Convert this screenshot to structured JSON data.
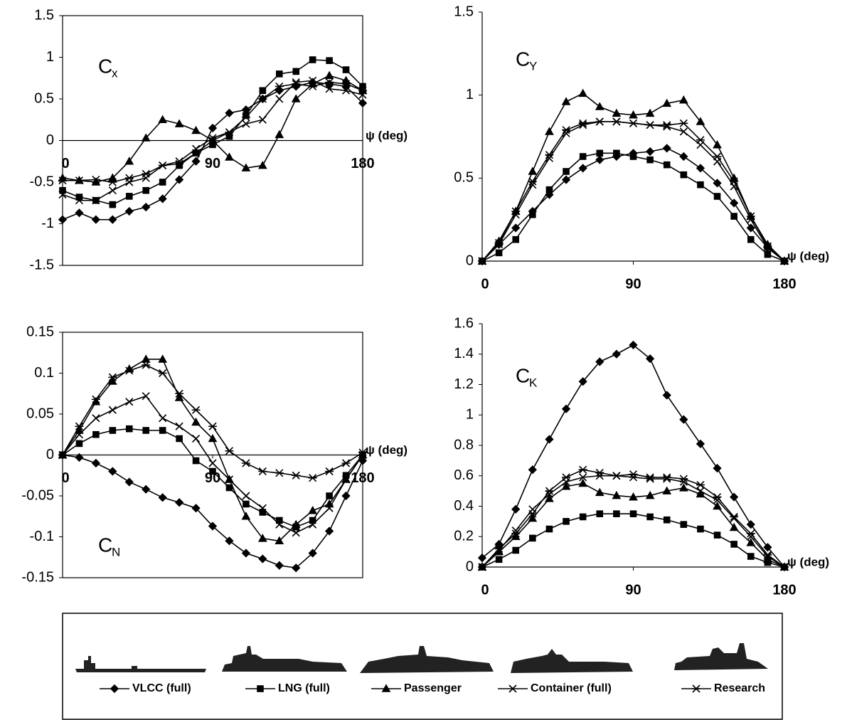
{
  "chart_data": [
    {
      "type": "line",
      "label": {
        "main": "C",
        "sub": "x"
      },
      "xlabel": "ψ (deg)",
      "frame": true,
      "x": [
        0,
        10,
        20,
        30,
        40,
        50,
        60,
        70,
        80,
        90,
        100,
        110,
        120,
        130,
        140,
        150,
        160,
        170,
        180
      ],
      "xlim": [
        0,
        180
      ],
      "xticks": [
        0,
        90,
        180
      ],
      "ylim": [
        -1.5,
        1.5
      ],
      "yticks": [
        -1.5,
        -1,
        -0.5,
        0,
        0.5,
        1,
        1.5
      ],
      "series": [
        {
          "values": [
            -0.95,
            -0.87,
            -0.95,
            -0.95,
            -0.85,
            -0.8,
            -0.7,
            -0.47,
            -0.25,
            0.15,
            0.33,
            0.37,
            0.5,
            0.6,
            0.65,
            0.7,
            0.68,
            0.65,
            0.45
          ]
        },
        {
          "values": [
            -0.6,
            -0.68,
            -0.72,
            -0.77,
            -0.67,
            -0.6,
            -0.5,
            -0.3,
            -0.15,
            -0.05,
            0.05,
            0.3,
            0.6,
            0.8,
            0.83,
            0.97,
            0.96,
            0.85,
            0.65
          ]
        },
        {
          "values": [
            -0.45,
            -0.48,
            -0.5,
            -0.45,
            -0.25,
            0.03,
            0.25,
            0.2,
            0.12,
            0.0,
            -0.2,
            -0.33,
            -0.3,
            0.07,
            0.5,
            0.68,
            0.78,
            0.72,
            0.6
          ]
        },
        {
          "values": [
            -0.65,
            -0.72,
            -0.72,
            -0.6,
            -0.5,
            -0.45,
            -0.3,
            -0.25,
            -0.1,
            0.03,
            0.1,
            0.2,
            0.25,
            0.5,
            0.7,
            0.72,
            0.62,
            0.6,
            0.55
          ]
        },
        {
          "values": [
            -0.48,
            -0.48,
            -0.47,
            -0.5,
            -0.45,
            -0.4,
            -0.3,
            -0.28,
            -0.15,
            0.0,
            0.1,
            0.28,
            0.5,
            0.65,
            0.68,
            0.65,
            0.7,
            0.68,
            0.6
          ]
        }
      ]
    },
    {
      "type": "line",
      "label": {
        "main": "C",
        "sub": "Y"
      },
      "xlabel": "ψ (deg)",
      "frame": false,
      "x": [
        0,
        10,
        20,
        30,
        40,
        50,
        60,
        70,
        80,
        90,
        100,
        110,
        120,
        130,
        140,
        150,
        160,
        170,
        180
      ],
      "xlim": [
        0,
        180
      ],
      "xticks": [
        0,
        90,
        180
      ],
      "ylim": [
        0,
        1.5
      ],
      "yticks": [
        0,
        0.5,
        1,
        1.5
      ],
      "series": [
        {
          "values": [
            0,
            0.1,
            0.2,
            0.3,
            0.4,
            0.49,
            0.56,
            0.61,
            0.63,
            0.65,
            0.66,
            0.68,
            0.63,
            0.56,
            0.47,
            0.35,
            0.2,
            0.08,
            0
          ]
        },
        {
          "values": [
            0,
            0.05,
            0.13,
            0.28,
            0.43,
            0.54,
            0.63,
            0.65,
            0.65,
            0.63,
            0.61,
            0.58,
            0.52,
            0.46,
            0.39,
            0.27,
            0.13,
            0.04,
            0
          ]
        },
        {
          "values": [
            0,
            0.12,
            0.3,
            0.54,
            0.78,
            0.96,
            1.01,
            0.93,
            0.89,
            0.88,
            0.89,
            0.95,
            0.97,
            0.84,
            0.7,
            0.5,
            0.27,
            0.1,
            0
          ]
        },
        {
          "values": [
            0,
            0.1,
            0.28,
            0.46,
            0.62,
            0.77,
            0.82,
            0.84,
            0.84,
            0.83,
            0.82,
            0.81,
            0.78,
            0.7,
            0.6,
            0.45,
            0.25,
            0.08,
            0
          ]
        },
        {
          "values": [
            0,
            0.11,
            0.3,
            0.48,
            0.64,
            0.79,
            0.83,
            0.84,
            0.84,
            0.83,
            0.82,
            0.82,
            0.83,
            0.73,
            0.63,
            0.48,
            0.27,
            0.09,
            0
          ]
        }
      ]
    },
    {
      "type": "line",
      "label": {
        "main": "C",
        "sub": "N"
      },
      "xlabel": "ψ (deg)",
      "frame": true,
      "x": [
        0,
        10,
        20,
        30,
        40,
        50,
        60,
        70,
        80,
        90,
        100,
        110,
        120,
        130,
        140,
        150,
        160,
        170,
        180
      ],
      "xlim": [
        0,
        180
      ],
      "xticks": [
        0,
        90,
        180
      ],
      "ylim": [
        -0.15,
        0.15
      ],
      "yticks": [
        -0.15,
        -0.1,
        -0.05,
        0,
        0.05,
        0.1,
        0.15
      ],
      "series": [
        {
          "values": [
            0,
            -0.003,
            -0.01,
            -0.02,
            -0.033,
            -0.042,
            -0.052,
            -0.058,
            -0.065,
            -0.087,
            -0.105,
            -0.12,
            -0.127,
            -0.135,
            -0.138,
            -0.12,
            -0.093,
            -0.05,
            -0.007
          ]
        },
        {
          "values": [
            0,
            0.014,
            0.025,
            0.03,
            0.032,
            0.03,
            0.03,
            0.02,
            -0.007,
            -0.02,
            -0.04,
            -0.06,
            -0.07,
            -0.08,
            -0.088,
            -0.08,
            -0.05,
            -0.025,
            0
          ]
        },
        {
          "values": [
            0,
            0.03,
            0.065,
            0.09,
            0.105,
            0.117,
            0.117,
            0.07,
            0.04,
            0.02,
            -0.03,
            -0.075,
            -0.102,
            -0.105,
            -0.085,
            -0.068,
            -0.06,
            -0.03,
            0
          ]
        },
        {
          "values": [
            0,
            0.025,
            0.045,
            0.055,
            0.065,
            0.072,
            0.045,
            0.035,
            0.02,
            -0.01,
            -0.03,
            -0.05,
            -0.065,
            -0.085,
            -0.095,
            -0.085,
            -0.065,
            -0.03,
            0
          ]
        },
        {
          "values": [
            0,
            0.035,
            0.068,
            0.095,
            0.103,
            0.11,
            0.1,
            0.075,
            0.055,
            0.035,
            0.005,
            -0.01,
            -0.02,
            -0.022,
            -0.025,
            -0.028,
            -0.02,
            -0.01,
            0.003
          ]
        }
      ]
    },
    {
      "type": "line",
      "label": {
        "main": "C",
        "sub": "K"
      },
      "xlabel": "ψ (deg)",
      "frame": false,
      "x": [
        0,
        10,
        20,
        30,
        40,
        50,
        60,
        70,
        80,
        90,
        100,
        110,
        120,
        130,
        140,
        150,
        160,
        170,
        180
      ],
      "xlim": [
        0,
        180
      ],
      "xticks": [
        0,
        90,
        180
      ],
      "ylim": [
        0,
        1.6
      ],
      "yticks": [
        0,
        0.2,
        0.4,
        0.6,
        0.8,
        1,
        1.2,
        1.4,
        1.6
      ],
      "series": [
        {
          "values": [
            0.06,
            0.15,
            0.38,
            0.64,
            0.84,
            1.04,
            1.22,
            1.35,
            1.4,
            1.46,
            1.37,
            1.13,
            0.97,
            0.81,
            0.65,
            0.46,
            0.28,
            0.13,
            0
          ]
        },
        {
          "values": [
            0,
            0.05,
            0.11,
            0.19,
            0.25,
            0.3,
            0.33,
            0.35,
            0.35,
            0.35,
            0.33,
            0.31,
            0.28,
            0.25,
            0.21,
            0.15,
            0.07,
            0.03,
            0
          ]
        },
        {
          "values": [
            0,
            0.1,
            0.2,
            0.32,
            0.45,
            0.53,
            0.55,
            0.49,
            0.47,
            0.46,
            0.47,
            0.5,
            0.52,
            0.48,
            0.4,
            0.26,
            0.16,
            0.05,
            0
          ]
        },
        {
          "values": [
            0,
            0.11,
            0.24,
            0.38,
            0.48,
            0.56,
            0.59,
            0.6,
            0.6,
            0.59,
            0.58,
            0.58,
            0.56,
            0.5,
            0.44,
            0.32,
            0.2,
            0.07,
            0
          ]
        },
        {
          "values": [
            0,
            0.12,
            0.22,
            0.35,
            0.5,
            0.59,
            0.64,
            0.62,
            0.6,
            0.61,
            0.59,
            0.59,
            0.58,
            0.54,
            0.46,
            0.33,
            0.22,
            0.08,
            0
          ]
        }
      ]
    }
  ],
  "legend": {
    "color": "#000000",
    "entries": [
      {
        "name": "VLCC (full)",
        "marker": "diamond"
      },
      {
        "name": "LNG (full)",
        "marker": "square"
      },
      {
        "name": "Passenger",
        "marker": "triangle"
      },
      {
        "name": "Container (full)",
        "marker": "x"
      },
      {
        "name": "Research",
        "marker": "asterisk"
      }
    ]
  }
}
